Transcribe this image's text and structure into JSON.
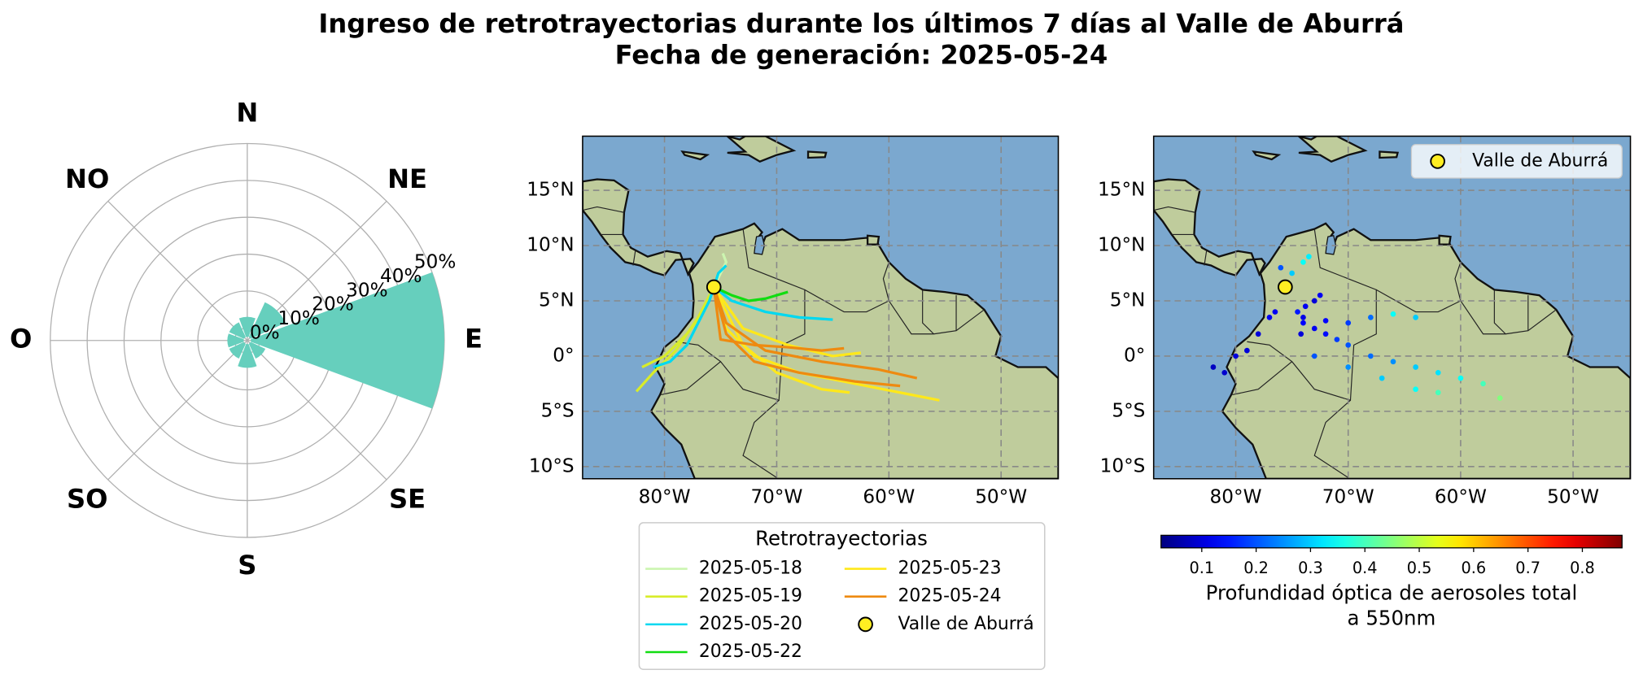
{
  "title": "Ingreso de retrotrayectorias durante los últimos 7 días al Valle de Aburrá",
  "subtitle": "Fecha de generación: 2025-05-24",
  "chart_data": [
    {
      "type": "rose",
      "categories": [
        "N",
        "NE",
        "E",
        "SE",
        "S",
        "SO",
        "O",
        "NO"
      ],
      "values": [
        3,
        8,
        50,
        2,
        4,
        2,
        2,
        2
      ],
      "color": "#66cfbd",
      "rlim": [
        0,
        50
      ],
      "rticks": [
        {
          "value": 0,
          "label": "0%"
        },
        {
          "value": 10,
          "label": "10%"
        },
        {
          "value": 20,
          "label": "20%"
        },
        {
          "value": 30,
          "label": "30%"
        },
        {
          "value": 40,
          "label": "40%"
        },
        {
          "value": 50,
          "label": "50%"
        }
      ],
      "grid": true
    },
    {
      "type": "trajectories",
      "xlim": [
        -87.3,
        -44.9
      ],
      "ylim": [
        -11.1,
        19.9
      ],
      "xticks": [
        {
          "value": -80,
          "label": "80°W"
        },
        {
          "value": -70,
          "label": "70°W"
        },
        {
          "value": -60,
          "label": "60°W"
        },
        {
          "value": -50,
          "label": "50°W"
        }
      ],
      "yticks": [
        {
          "value": -10,
          "label": "10°S"
        },
        {
          "value": -5,
          "label": "5°S"
        },
        {
          "value": 0,
          "label": "0°"
        },
        {
          "value": 5,
          "label": "5°N"
        },
        {
          "value": 10,
          "label": "10°N"
        },
        {
          "value": 15,
          "label": "15°N"
        }
      ],
      "grid": true,
      "legend": "lower center",
      "legend_title": "Retrotrayectorias",
      "series": [
        {
          "name": "2025-05-18",
          "color": "#ccf5b0",
          "lines": [
            {
              "x": [
                -75.6,
                -75,
                -74.5,
                -74.8
              ],
              "y": [
                6.25,
                7.5,
                8.5,
                9.3
              ]
            }
          ]
        },
        {
          "name": "2025-05-19",
          "color": "#d8ec2a",
          "lines": [
            {
              "x": [
                -75.6,
                -76.5,
                -78,
                -80,
                -82
              ],
              "y": [
                6.25,
                4,
                2,
                0,
                -1
              ]
            },
            {
              "x": [
                -75.6,
                -77,
                -79,
                -81,
                -82.5
              ],
              "y": [
                6.25,
                3.5,
                0.5,
                -1.5,
                -3.2
              ]
            }
          ]
        },
        {
          "name": "2025-05-20",
          "color": "#00d8f0",
          "lines": [
            {
              "x": [
                -75.6,
                -76,
                -77,
                -78,
                -79.5,
                -81
              ],
              "y": [
                6.25,
                5,
                3,
                1,
                -0.5,
                -1
              ]
            },
            {
              "x": [
                -75.6,
                -74,
                -71,
                -68,
                -65
              ],
              "y": [
                6.25,
                5,
                4,
                3.5,
                3.3
              ]
            },
            {
              "x": [
                -75.6,
                -75.2,
                -74.5
              ],
              "y": [
                6.25,
                7.5,
                8.2
              ]
            }
          ]
        },
        {
          "name": "2025-05-22",
          "color": "#11dd11",
          "lines": [
            {
              "x": [
                -75.6,
                -74,
                -72.5,
                -71,
                -69
              ],
              "y": [
                6.25,
                5.5,
                5,
                5.2,
                5.8
              ]
            }
          ]
        },
        {
          "name": "2025-05-23",
          "color": "#ffe81a",
          "lines": [
            {
              "x": [
                -75.6,
                -74.5,
                -72,
                -68,
                -63,
                -58,
                -55.5
              ],
              "y": [
                6.25,
                2.5,
                0,
                -1.5,
                -2.5,
                -3.5,
                -4
              ]
            },
            {
              "x": [
                -75.6,
                -73,
                -70,
                -66,
                -63.5
              ],
              "y": [
                6.25,
                1,
                -1.5,
                -3,
                -3.3
              ]
            },
            {
              "x": [
                -75.6,
                -73,
                -69,
                -65,
                -62.5
              ],
              "y": [
                6.25,
                2.5,
                1,
                0,
                0.3
              ]
            }
          ]
        },
        {
          "name": "2025-05-24",
          "color": "#ee8a10",
          "lines": [
            {
              "x": [
                -75.6,
                -74.5,
                -71,
                -66,
                -61,
                -57.5
              ],
              "y": [
                6.25,
                3,
                0.5,
                -0.5,
                -1.2,
                -2
              ]
            },
            {
              "x": [
                -75.6,
                -74.5,
                -72,
                -68,
                -63,
                -59
              ],
              "y": [
                6.25,
                2,
                -0.5,
                -1.5,
                -2.3,
                -2.7
              ]
            },
            {
              "x": [
                -75.6,
                -75,
                -72,
                -69,
                -66,
                -64
              ],
              "y": [
                6.25,
                1.5,
                1,
                0.8,
                0.5,
                0.7
              ]
            }
          ]
        }
      ],
      "site": {
        "name": "Valle de Aburrá",
        "x": -75.6,
        "y": 6.25,
        "color": "#ffee22"
      }
    },
    {
      "type": "scatter",
      "xlim": [
        -87.3,
        -44.9
      ],
      "ylim": [
        -11.1,
        19.9
      ],
      "xticks": [
        {
          "value": -80,
          "label": "80°W"
        },
        {
          "value": -70,
          "label": "70°W"
        },
        {
          "value": -60,
          "label": "60°W"
        },
        {
          "value": -50,
          "label": "50°W"
        }
      ],
      "yticks": [
        {
          "value": -10,
          "label": "10°S"
        },
        {
          "value": -5,
          "label": "5°S"
        },
        {
          "value": 0,
          "label": "0°"
        },
        {
          "value": 5,
          "label": "5°N"
        },
        {
          "value": 10,
          "label": "10°N"
        },
        {
          "value": 15,
          "label": "15°N"
        }
      ],
      "grid": true,
      "x": [
        -75.6,
        -76.5,
        -78,
        -80,
        -82,
        -77,
        -79,
        -81,
        -74.5,
        -74,
        -73,
        -72,
        -71,
        -70,
        -68,
        -66,
        -64,
        -62,
        -60,
        -58,
        -56.5,
        -73,
        -70,
        -67,
        -64,
        -62,
        -75,
        -74,
        -73.5,
        -72.5,
        -73,
        -74,
        -72,
        -70,
        -68,
        -66,
        -64,
        -74.2,
        -73.8,
        -76
      ],
      "y": [
        6.25,
        4,
        2,
        0,
        -1,
        3.5,
        0.5,
        -1.5,
        4,
        3,
        2.5,
        2,
        1.5,
        1,
        0,
        -0.5,
        -1,
        -1.5,
        -2,
        -2.5,
        -3.8,
        0,
        -1,
        -2,
        -3,
        -3.3,
        7.5,
        8.5,
        9,
        5.5,
        5,
        3.5,
        3.2,
        3,
        3.5,
        3.8,
        3.5,
        2,
        4.5,
        8
      ],
      "values": [
        0.15,
        0.12,
        0.1,
        0.1,
        0.08,
        0.12,
        0.1,
        0.09,
        0.15,
        0.13,
        0.12,
        0.14,
        0.18,
        0.2,
        0.22,
        0.25,
        0.3,
        0.32,
        0.35,
        0.4,
        0.45,
        0.2,
        0.25,
        0.3,
        0.35,
        0.4,
        0.3,
        0.35,
        0.33,
        0.12,
        0.1,
        0.11,
        0.13,
        0.18,
        0.22,
        0.35,
        0.3,
        0.1,
        0.12,
        0.2
      ],
      "colormap": "jet",
      "clim": [
        0.025,
        0.873
      ],
      "cticks": [
        0.1,
        0.2,
        0.3,
        0.4,
        0.5,
        0.6,
        0.7,
        0.8
      ],
      "colorbar_label": [
        "Profundidad óptica de aerosoles total",
        "a 550nm"
      ],
      "legend": "upper right",
      "site": {
        "name": "Valle de Aburrá",
        "x": -75.6,
        "y": 6.25,
        "color": "#ffee22"
      }
    }
  ]
}
